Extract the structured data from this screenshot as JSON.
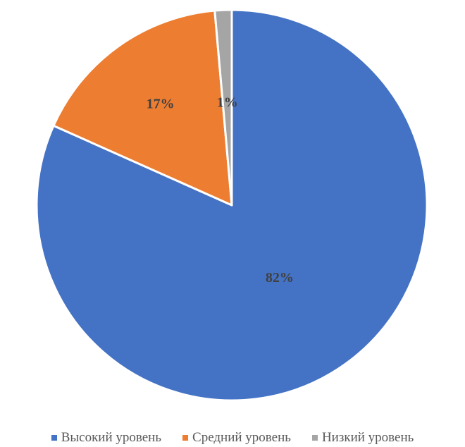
{
  "chart_data": {
    "type": "pie",
    "slices": [
      {
        "name": "Высокий уровень",
        "value": 82,
        "label": "82%",
        "color": "#4472C4"
      },
      {
        "name": "Средний уровень",
        "value": 17,
        "label": "17%",
        "color": "#ED7D31"
      },
      {
        "name": "Низкий уровень",
        "value": 1.4,
        "label": "1%",
        "color": "#A5A5A5"
      }
    ],
    "start_angle_deg": 0,
    "direction": "clockwise",
    "legend_position": "bottom",
    "data_labels": "percent"
  }
}
